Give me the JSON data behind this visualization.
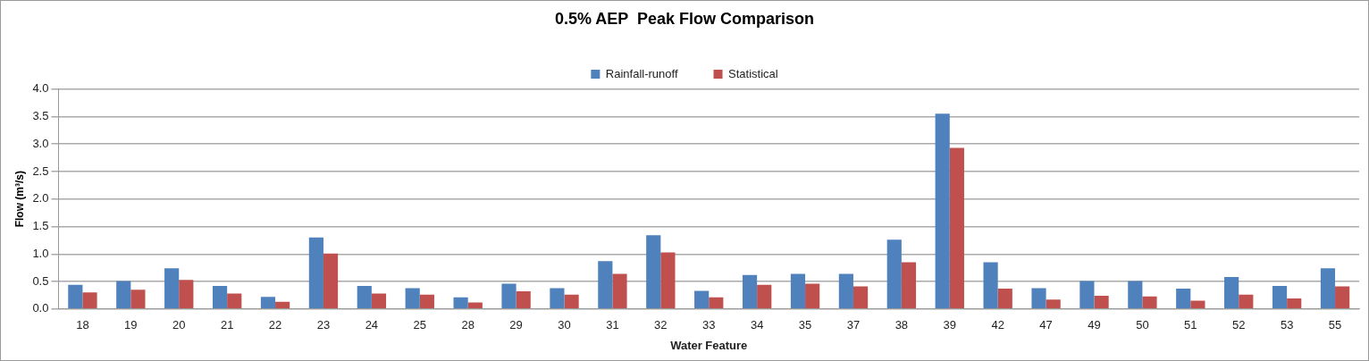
{
  "chart_data": {
    "type": "bar",
    "title": "0.5% AEP  Peak Flow Comparison",
    "xlabel": "Water Feature",
    "ylabel": "Flow (m³/s)",
    "categories": [
      "18",
      "19",
      "20",
      "21",
      "22",
      "23",
      "24",
      "25",
      "28",
      "29",
      "30",
      "31",
      "32",
      "33",
      "34",
      "35",
      "37",
      "38",
      "39",
      "42",
      "47",
      "49",
      "50",
      "51",
      "52",
      "53",
      "55"
    ],
    "series": [
      {
        "name": "Rainfall-runoff",
        "color": "#4f81bd",
        "values": [
          0.44,
          0.51,
          0.74,
          0.42,
          0.22,
          1.3,
          0.42,
          0.38,
          0.21,
          0.46,
          0.38,
          0.87,
          1.34,
          0.33,
          0.62,
          0.64,
          0.64,
          1.26,
          3.55,
          0.85,
          0.38,
          0.51,
          0.51,
          0.37,
          0.58,
          0.42,
          0.74
        ]
      },
      {
        "name": "Statistical",
        "color": "#c0504d",
        "values": [
          0.3,
          0.35,
          0.53,
          0.28,
          0.13,
          1.01,
          0.28,
          0.26,
          0.12,
          0.32,
          0.26,
          0.64,
          1.03,
          0.21,
          0.44,
          0.46,
          0.41,
          0.85,
          2.93,
          0.37,
          0.17,
          0.24,
          0.23,
          0.15,
          0.26,
          0.19,
          0.41
        ]
      }
    ],
    "ylim": [
      0,
      4
    ],
    "yticks": [
      {
        "value": 0,
        "label": "0.0"
      },
      {
        "value": 0.5,
        "label": "0.5"
      },
      {
        "value": 1,
        "label": "1.0"
      },
      {
        "value": 1.5,
        "label": "1.5"
      },
      {
        "value": 2,
        "label": "2.0"
      },
      {
        "value": 2.5,
        "label": "2.5"
      },
      {
        "value": 3,
        "label": "3.0"
      },
      {
        "value": 3.5,
        "label": "3.5"
      },
      {
        "value": 4,
        "label": "4.0"
      }
    ],
    "grid": "y",
    "legend": "top"
  }
}
